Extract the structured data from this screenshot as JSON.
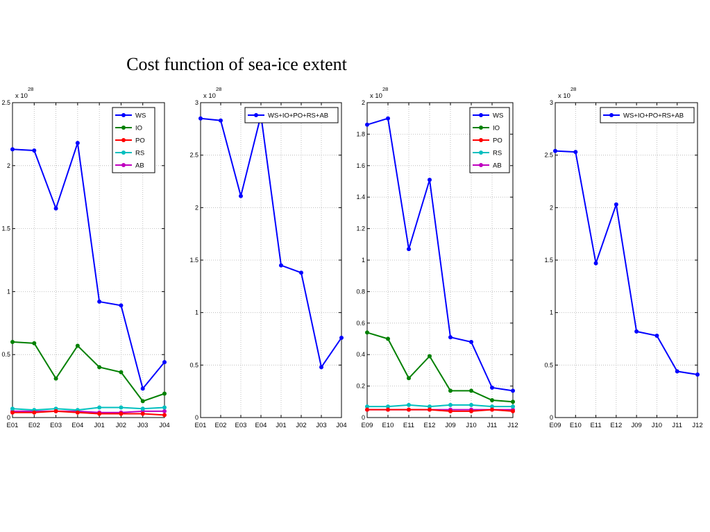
{
  "title": "Cost function of sea-ice extent",
  "colors": {
    "WS": "#0000ff",
    "IO": "#008000",
    "PO": "#ff0000",
    "RS": "#00bfbf",
    "AB": "#bf00bf"
  },
  "chart_data": [
    {
      "type": "line",
      "exponent_label": "x 10",
      "exponent": "28",
      "categories": [
        "E01",
        "E02",
        "E03",
        "E04",
        "J01",
        "J02",
        "J03",
        "J04"
      ],
      "ylim": [
        0,
        2.5
      ],
      "yticks": [
        0,
        0.5,
        1,
        1.5,
        2,
        2.5
      ],
      "ytick_labels": [
        "0",
        "0.5",
        "1",
        "1.5",
        "2",
        "2.5"
      ],
      "grid": true,
      "legend_position": "top-right",
      "series": [
        {
          "name": "WS",
          "color": "#0000ff",
          "values": [
            2.13,
            2.12,
            1.66,
            2.18,
            0.92,
            0.89,
            0.23,
            0.44
          ]
        },
        {
          "name": "IO",
          "color": "#008000",
          "values": [
            0.6,
            0.59,
            0.31,
            0.57,
            0.4,
            0.36,
            0.13,
            0.19
          ]
        },
        {
          "name": "PO",
          "color": "#ff0000",
          "values": [
            0.04,
            0.04,
            0.05,
            0.04,
            0.03,
            0.03,
            0.03,
            0.02
          ]
        },
        {
          "name": "RS",
          "color": "#00bfbf",
          "values": [
            0.07,
            0.06,
            0.07,
            0.06,
            0.08,
            0.08,
            0.07,
            0.08
          ]
        },
        {
          "name": "AB",
          "color": "#bf00bf",
          "values": [
            0.05,
            0.05,
            0.05,
            0.05,
            0.04,
            0.04,
            0.05,
            0.05
          ]
        }
      ]
    },
    {
      "type": "line",
      "exponent_label": "x 10",
      "exponent": "28",
      "categories": [
        "E01",
        "E02",
        "E03",
        "E04",
        "J01",
        "J02",
        "J03",
        "J04"
      ],
      "ylim": [
        0,
        3
      ],
      "yticks": [
        0,
        0.5,
        1,
        1.5,
        2,
        2.5,
        3
      ],
      "ytick_labels": [
        "0",
        "0.5",
        "1",
        "1.5",
        "2",
        "2.5",
        "3"
      ],
      "grid": true,
      "legend_position": "top-right",
      "series": [
        {
          "name": "WS+IO+PO+RS+AB",
          "color": "#0000ff",
          "values": [
            2.85,
            2.83,
            2.11,
            2.88,
            1.45,
            1.38,
            0.48,
            0.76
          ]
        }
      ]
    },
    {
      "type": "line",
      "exponent_label": "x 10",
      "exponent": "28",
      "categories": [
        "E09",
        "E10",
        "E11",
        "E12",
        "J09",
        "J10",
        "J11",
        "J12"
      ],
      "ylim": [
        0,
        2
      ],
      "yticks": [
        0,
        0.2,
        0.4,
        0.6,
        0.8,
        1,
        1.2,
        1.4,
        1.6,
        1.8,
        2
      ],
      "ytick_labels": [
        "0",
        "0.2",
        "0.4",
        "0.6",
        "0.8",
        "1",
        "1.2",
        "1.4",
        "1.6",
        "1.8",
        "2"
      ],
      "grid": true,
      "legend_position": "top-right",
      "series": [
        {
          "name": "WS",
          "color": "#0000ff",
          "values": [
            1.86,
            1.9,
            1.07,
            1.51,
            0.51,
            0.48,
            0.19,
            0.17
          ]
        },
        {
          "name": "IO",
          "color": "#008000",
          "values": [
            0.54,
            0.5,
            0.25,
            0.39,
            0.17,
            0.17,
            0.11,
            0.1
          ]
        },
        {
          "name": "PO",
          "color": "#ff0000",
          "values": [
            0.05,
            0.05,
            0.05,
            0.05,
            0.04,
            0.04,
            0.05,
            0.04
          ]
        },
        {
          "name": "RS",
          "color": "#00bfbf",
          "values": [
            0.07,
            0.07,
            0.08,
            0.07,
            0.08,
            0.08,
            0.07,
            0.07
          ]
        },
        {
          "name": "AB",
          "color": "#bf00bf",
          "values": [
            0.05,
            0.05,
            0.05,
            0.05,
            0.05,
            0.05,
            0.05,
            0.05
          ]
        }
      ]
    },
    {
      "type": "line",
      "exponent_label": "x 10",
      "exponent": "28",
      "categories": [
        "E09",
        "E10",
        "E11",
        "E12",
        "J09",
        "J10",
        "J11",
        "J12"
      ],
      "ylim": [
        0,
        3
      ],
      "yticks": [
        0,
        0.5,
        1,
        1.5,
        2,
        2.5,
        3
      ],
      "ytick_labels": [
        "0",
        "0.5",
        "1",
        "1.5",
        "2",
        "2.5",
        "3"
      ],
      "grid": true,
      "legend_position": "top-right",
      "series": [
        {
          "name": "WS+IO+PO+RS+AB",
          "color": "#0000ff",
          "values": [
            2.54,
            2.53,
            1.47,
            2.03,
            0.82,
            0.78,
            0.44,
            0.41
          ]
        }
      ]
    }
  ]
}
